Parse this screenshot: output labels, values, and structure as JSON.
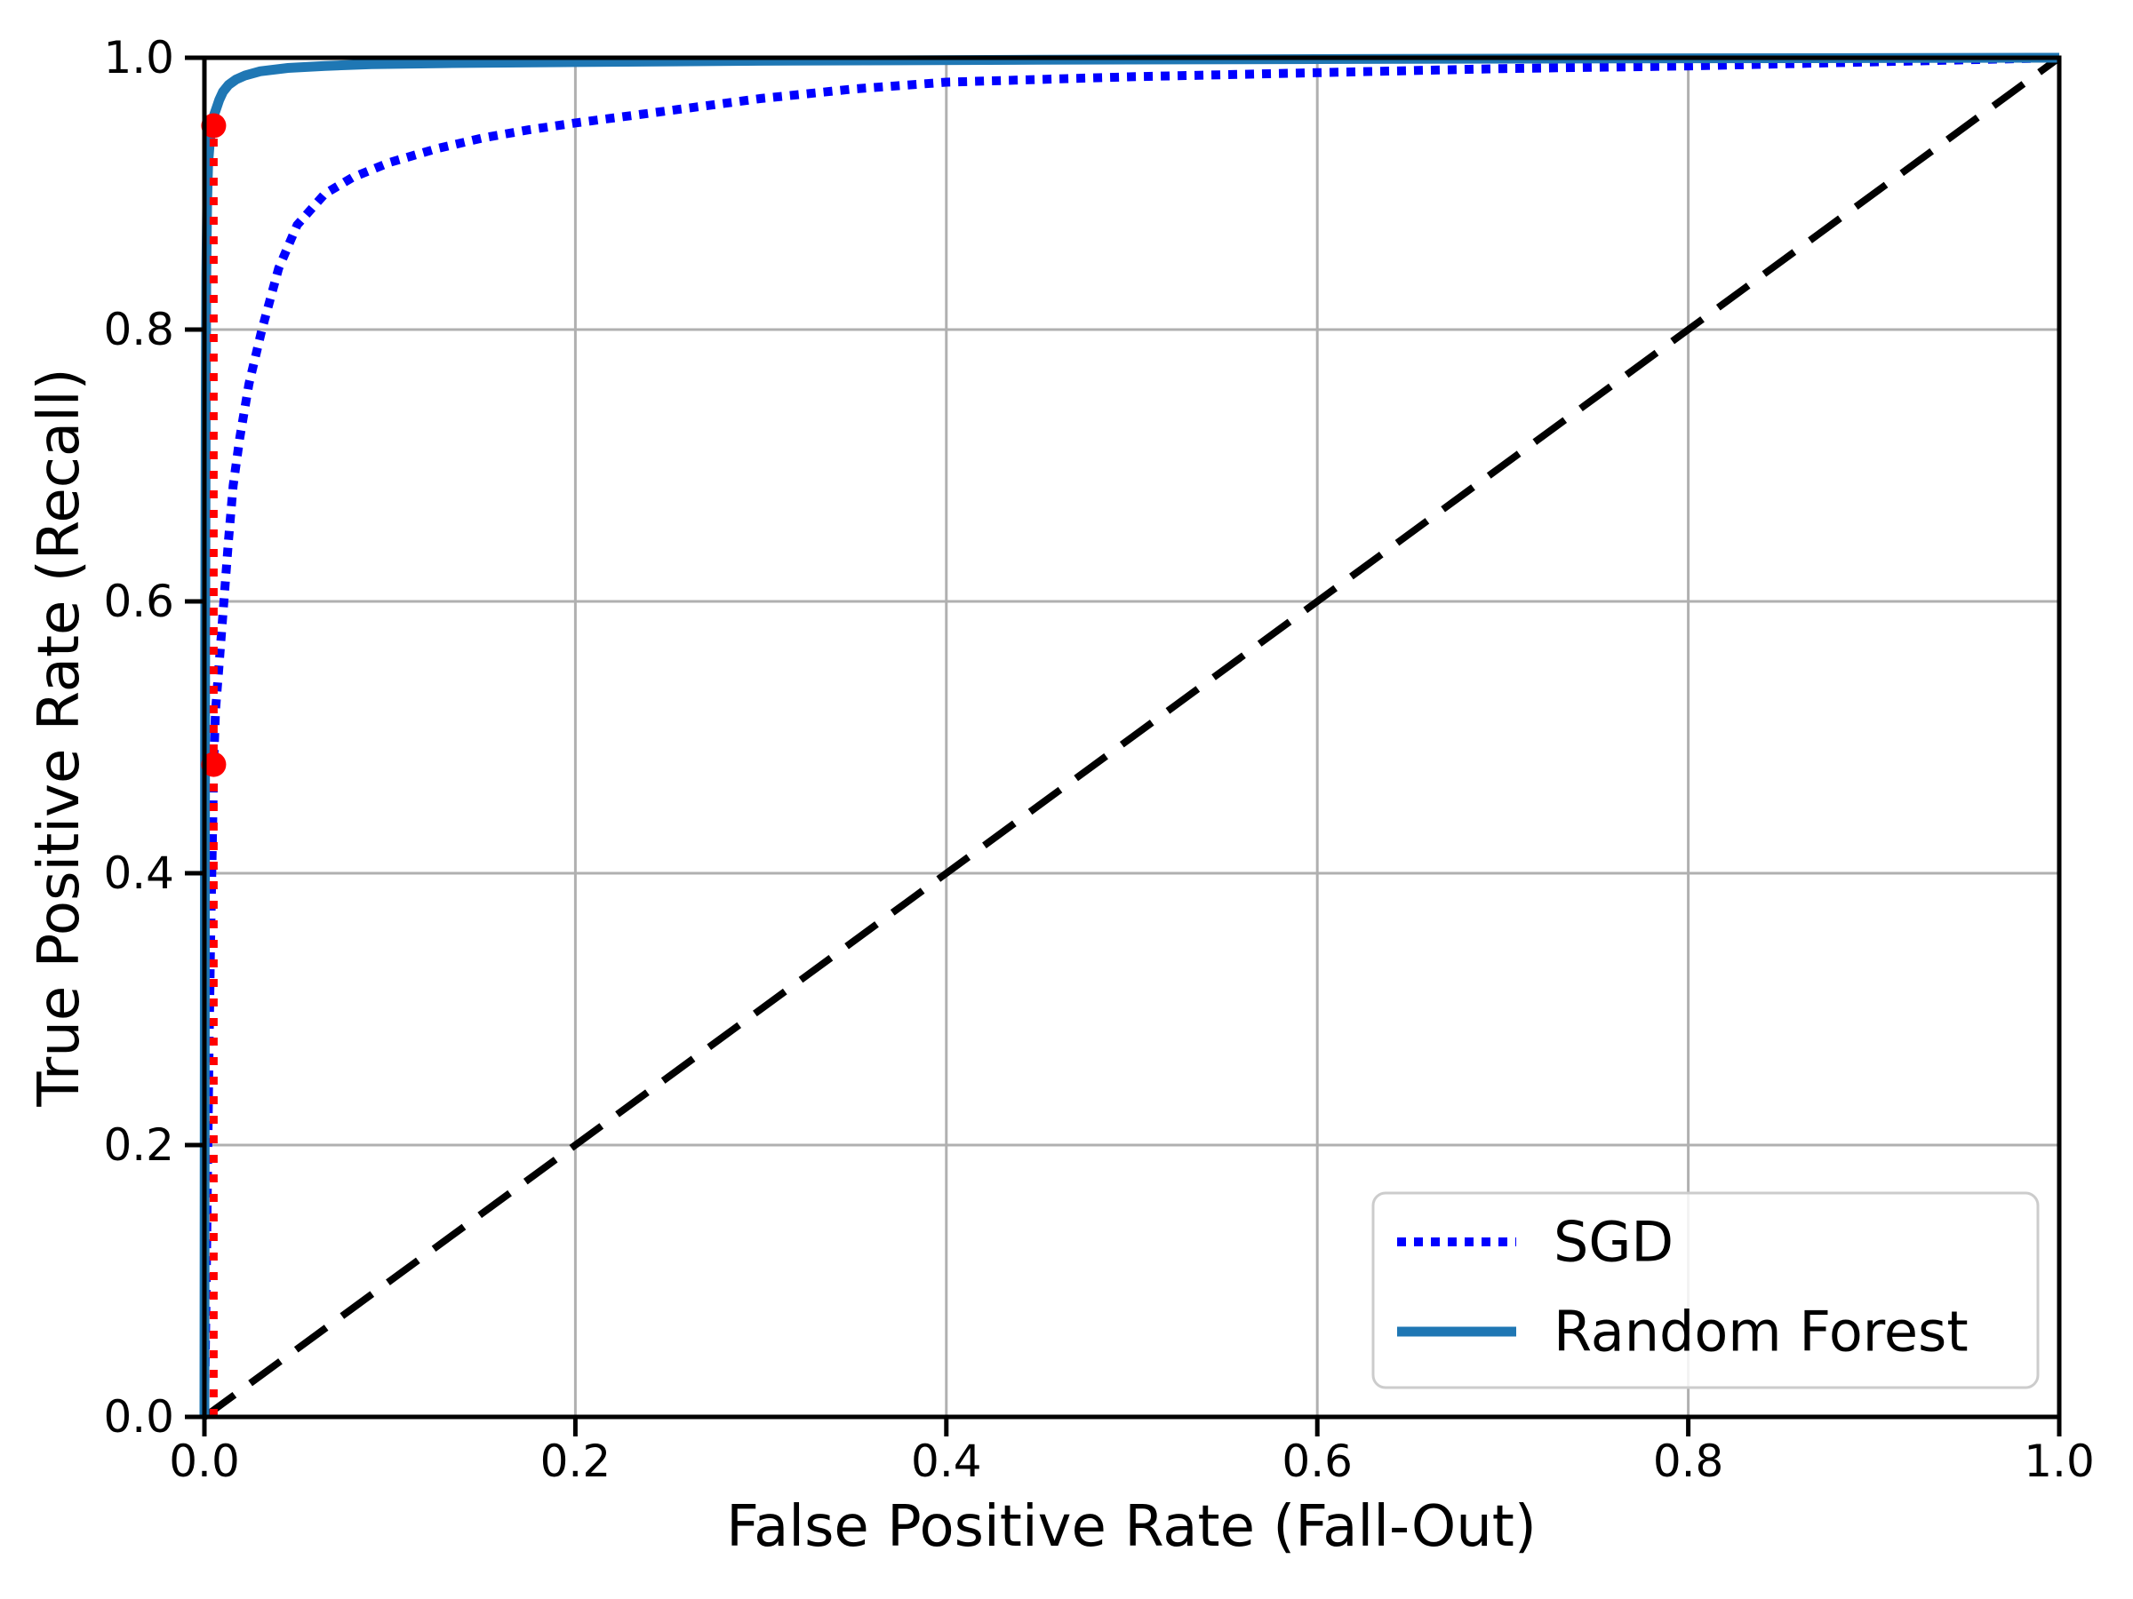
{
  "chart_data": {
    "type": "line",
    "title": "",
    "xlabel": "False Positive Rate (Fall-Out)",
    "ylabel": "True Positive Rate (Recall)",
    "xlim": [
      0.0,
      1.0
    ],
    "ylim": [
      0.0,
      1.0
    ],
    "x_ticks": [
      0.0,
      0.2,
      0.4,
      0.6,
      0.8,
      1.0
    ],
    "y_ticks": [
      0.0,
      0.2,
      0.4,
      0.6,
      0.8,
      1.0
    ],
    "grid": true,
    "legend_position": "lower right",
    "series": [
      {
        "id": "sgd",
        "name": "SGD",
        "color": "#0000ff",
        "style": "dotted",
        "dash": "10 9",
        "linewidth": 10,
        "in_legend": true,
        "points": [
          [
            0,
            0
          ],
          [
            0.0008,
            0.08
          ],
          [
            0.0016,
            0.17
          ],
          [
            0.0024,
            0.26
          ],
          [
            0.0032,
            0.34
          ],
          [
            0.004,
            0.4
          ],
          [
            0.0045,
            0.44
          ],
          [
            0.005,
            0.48
          ],
          [
            0.006,
            0.52
          ],
          [
            0.008,
            0.555
          ],
          [
            0.0105,
            0.6
          ],
          [
            0.013,
            0.645
          ],
          [
            0.0155,
            0.685
          ],
          [
            0.019,
            0.72
          ],
          [
            0.024,
            0.76
          ],
          [
            0.031,
            0.8
          ],
          [
            0.04,
            0.845
          ],
          [
            0.05,
            0.877
          ],
          [
            0.065,
            0.9
          ],
          [
            0.08,
            0.912
          ],
          [
            0.1,
            0.923
          ],
          [
            0.125,
            0.933
          ],
          [
            0.15,
            0.941
          ],
          [
            0.175,
            0.947
          ],
          [
            0.2,
            0.952
          ],
          [
            0.25,
            0.961
          ],
          [
            0.3,
            0.97
          ],
          [
            0.35,
            0.977
          ],
          [
            0.4,
            0.982
          ],
          [
            0.5,
            0.986
          ],
          [
            0.6,
            0.989
          ],
          [
            0.7,
            0.992
          ],
          [
            0.8,
            0.994
          ],
          [
            0.9,
            0.997
          ],
          [
            1,
            1
          ]
        ]
      },
      {
        "id": "random-forest",
        "name": "Random Forest",
        "color": "#1f77b4",
        "style": "solid",
        "dash": "",
        "linewidth": 11,
        "in_legend": true,
        "points": [
          [
            0,
            0
          ],
          [
            0.0004,
            0.55
          ],
          [
            0.0007,
            0.75
          ],
          [
            0.001,
            0.84
          ],
          [
            0.0015,
            0.895
          ],
          [
            0.002,
            0.922
          ],
          [
            0.003,
            0.94
          ],
          [
            0.004,
            0.951
          ],
          [
            0.005,
            0.957
          ],
          [
            0.0065,
            0.963
          ],
          [
            0.008,
            0.969
          ],
          [
            0.01,
            0.975
          ],
          [
            0.013,
            0.98
          ],
          [
            0.017,
            0.984
          ],
          [
            0.022,
            0.987
          ],
          [
            0.03,
            0.99
          ],
          [
            0.045,
            0.9925
          ],
          [
            0.065,
            0.994
          ],
          [
            0.09,
            0.9952
          ],
          [
            0.13,
            0.996
          ],
          [
            0.2,
            0.9968
          ],
          [
            0.3,
            0.9978
          ],
          [
            0.45,
            0.9985
          ],
          [
            0.65,
            0.9992
          ],
          [
            1,
            1
          ]
        ]
      },
      {
        "id": "chance-diagonal",
        "name": "chance-diagonal",
        "color": "#000000",
        "style": "dashed",
        "dash": "42 22",
        "linewidth": 8,
        "in_legend": false,
        "points": [
          [
            0,
            0
          ],
          [
            1,
            1
          ]
        ]
      },
      {
        "id": "threshold-line",
        "name": "threshold-line",
        "color": "#ff0000",
        "style": "dotted",
        "dash": "9 13",
        "linewidth": 9,
        "in_legend": false,
        "points": [
          [
            0.005,
            0
          ],
          [
            0.005,
            0.95
          ]
        ]
      }
    ],
    "markers": [
      {
        "x": 0.005,
        "y": 0.95,
        "color": "#ff0000",
        "size": 14
      },
      {
        "x": 0.005,
        "y": 0.48,
        "color": "#ff0000",
        "size": 14
      }
    ]
  }
}
